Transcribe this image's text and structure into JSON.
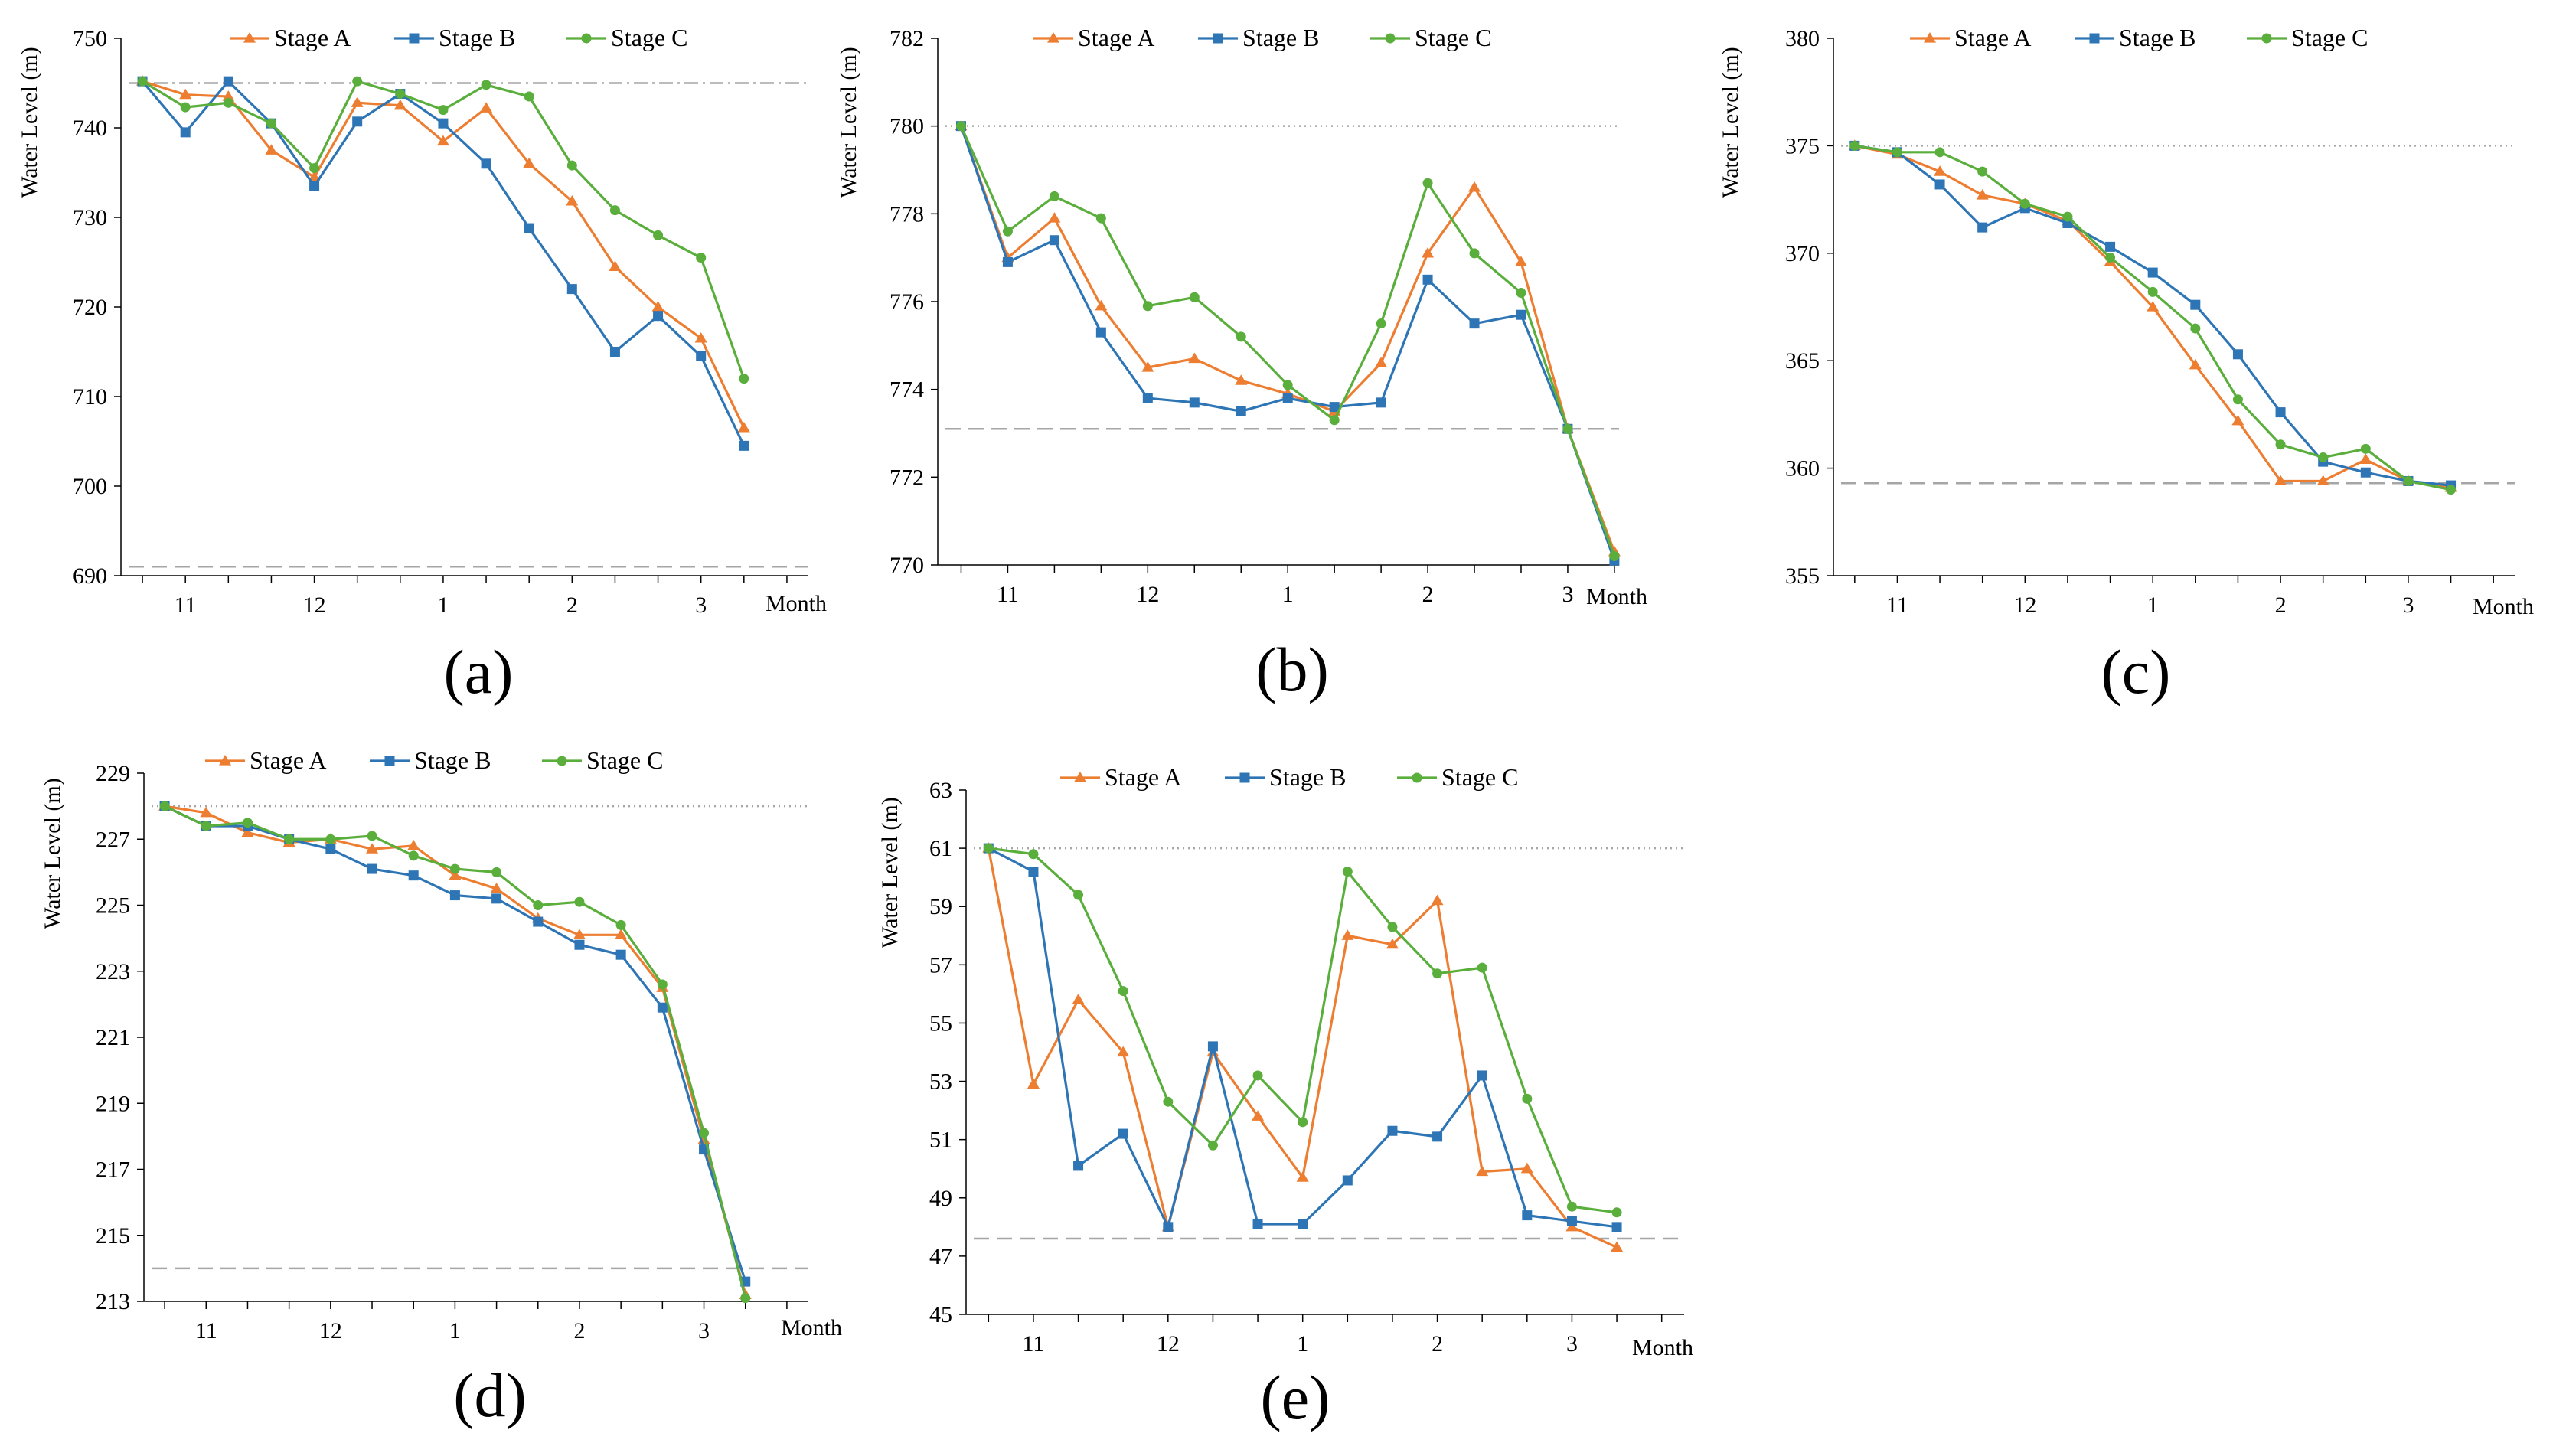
{
  "series_colors": {
    "Stage A": "#ED7D31",
    "Stage B": "#2E75B6",
    "Stage C": "#5AAE3C"
  },
  "ref_line_color": "#a6a6a6",
  "chart_data": [
    {
      "panel": "(a)",
      "type": "line",
      "ylabel": "Water Level (m)",
      "xlabel": "Month",
      "ylim": [
        690,
        750
      ],
      "yticks": [
        690,
        700,
        710,
        720,
        730,
        740,
        750
      ],
      "xticks": [
        {
          "label": "11",
          "x": 1
        },
        {
          "label": "12",
          "x": 4
        },
        {
          "label": "1",
          "x": 7
        },
        {
          "label": "2",
          "x": 10
        },
        {
          "label": "3",
          "x": 13
        }
      ],
      "xlim": [
        -0.5,
        15.5
      ],
      "ref_lines": [
        {
          "y": 745,
          "style": "dashdot"
        },
        {
          "y": 691,
          "style": "dash"
        }
      ],
      "legend": [
        "Stage A",
        "Stage B",
        "Stage C"
      ],
      "series": [
        {
          "name": "Stage A",
          "values": [
            745.2,
            743.7,
            743.5,
            737.5,
            734.5,
            742.8,
            742.5,
            738.5,
            742.2,
            736.0,
            731.8,
            724.5,
            720.0,
            716.5,
            706.5
          ]
        },
        {
          "name": "Stage B",
          "values": [
            745.2,
            739.5,
            745.2,
            740.5,
            733.5,
            740.7,
            743.8,
            740.5,
            736.0,
            728.8,
            722.0,
            715.0,
            719.0,
            714.5,
            704.5
          ]
        },
        {
          "name": "Stage C",
          "values": [
            745.2,
            742.3,
            742.8,
            740.5,
            735.5,
            745.2,
            743.8,
            742.0,
            744.8,
            743.5,
            735.8,
            730.8,
            728.0,
            725.5,
            712.0
          ]
        }
      ]
    },
    {
      "panel": "(b)",
      "type": "line",
      "ylabel": "Water Level (m)",
      "xlabel": "Month",
      "ylim": [
        770,
        782
      ],
      "yticks": [
        770,
        772,
        774,
        776,
        778,
        780,
        782
      ],
      "xticks": [
        {
          "label": "11",
          "x": 1
        },
        {
          "label": "12",
          "x": 4
        },
        {
          "label": "1",
          "x": 7
        },
        {
          "label": "2",
          "x": 10
        },
        {
          "label": "3",
          "x": 13
        }
      ],
      "xlim": [
        -0.5,
        14.1
      ],
      "xlabel_inline": true,
      "ref_lines": [
        {
          "y": 780,
          "style": "dot"
        },
        {
          "y": 773.1,
          "style": "dash"
        }
      ],
      "legend": [
        "Stage A",
        "Stage B",
        "Stage C"
      ],
      "series": [
        {
          "name": "Stage A",
          "values": [
            780.0,
            777.0,
            777.9,
            775.9,
            774.5,
            774.7,
            774.2,
            773.9,
            773.5,
            774.6,
            777.1,
            778.6,
            776.9,
            773.1,
            770.3
          ]
        },
        {
          "name": "Stage B",
          "values": [
            780.0,
            776.9,
            777.4,
            775.3,
            773.8,
            773.7,
            773.5,
            773.8,
            773.6,
            773.7,
            776.5,
            775.5,
            775.7,
            773.1,
            770.1
          ]
        },
        {
          "name": "Stage C",
          "values": [
            780.0,
            777.6,
            778.4,
            777.9,
            775.9,
            776.1,
            775.2,
            774.1,
            773.3,
            775.5,
            778.7,
            777.1,
            776.2,
            773.1,
            770.2
          ]
        }
      ]
    },
    {
      "panel": "(c)",
      "type": "line",
      "ylabel": "Water Level (m)",
      "xlabel": "Month",
      "ylim": [
        355,
        380
      ],
      "yticks": [
        355,
        360,
        365,
        370,
        375,
        380
      ],
      "xticks": [
        {
          "label": "11",
          "x": 1
        },
        {
          "label": "12",
          "x": 4
        },
        {
          "label": "1",
          "x": 7
        },
        {
          "label": "2",
          "x": 10
        },
        {
          "label": "3",
          "x": 13
        }
      ],
      "xlim": [
        -0.5,
        15.5
      ],
      "ref_lines": [
        {
          "y": 375,
          "style": "dot"
        },
        {
          "y": 359.3,
          "style": "dash"
        }
      ],
      "legend": [
        "Stage A",
        "Stage B",
        "Stage C"
      ],
      "series": [
        {
          "name": "Stage A",
          "values": [
            375.0,
            374.6,
            373.8,
            372.7,
            372.3,
            371.5,
            369.6,
            367.5,
            364.8,
            362.2,
            359.4,
            359.4,
            360.4,
            359.4,
            359.1
          ]
        },
        {
          "name": "Stage B",
          "values": [
            375.0,
            374.7,
            373.2,
            371.2,
            372.1,
            371.4,
            370.3,
            369.1,
            367.6,
            365.3,
            362.6,
            360.3,
            359.8,
            359.4,
            359.2
          ]
        },
        {
          "name": "Stage C",
          "values": [
            375.0,
            374.7,
            374.7,
            373.8,
            372.3,
            371.7,
            369.8,
            368.2,
            366.5,
            363.2,
            361.1,
            360.5,
            360.9,
            359.4,
            359.0
          ]
        }
      ]
    },
    {
      "panel": "(d)",
      "type": "line",
      "ylabel": "Water Level (m)",
      "xlabel": "Month",
      "ylim": [
        213,
        229
      ],
      "yticks": [
        213,
        215,
        217,
        219,
        221,
        223,
        225,
        227,
        229
      ],
      "xticks": [
        {
          "label": "11",
          "x": 1
        },
        {
          "label": "12",
          "x": 4
        },
        {
          "label": "1",
          "x": 7
        },
        {
          "label": "2",
          "x": 10
        },
        {
          "label": "3",
          "x": 13
        }
      ],
      "xlim": [
        -0.5,
        15.5
      ],
      "ref_lines": [
        {
          "y": 228,
          "style": "dot"
        },
        {
          "y": 214,
          "style": "dash"
        }
      ],
      "legend": [
        "Stage A",
        "Stage B",
        "Stage C"
      ],
      "series": [
        {
          "name": "Stage A",
          "values": [
            228.0,
            227.8,
            227.2,
            226.9,
            227.0,
            226.7,
            226.8,
            225.9,
            225.5,
            224.6,
            224.1,
            224.1,
            222.5,
            217.9,
            213.2
          ]
        },
        {
          "name": "Stage B",
          "values": [
            228.0,
            227.4,
            227.4,
            227.0,
            226.7,
            226.1,
            225.9,
            225.3,
            225.2,
            224.5,
            223.8,
            223.5,
            221.9,
            217.6,
            213.6
          ]
        },
        {
          "name": "Stage C",
          "values": [
            228.0,
            227.4,
            227.5,
            227.0,
            227.0,
            227.1,
            226.5,
            226.1,
            226.0,
            225.0,
            225.1,
            224.4,
            222.6,
            218.1,
            213.1
          ]
        }
      ]
    },
    {
      "panel": "(e)",
      "type": "line",
      "ylabel": "Water Level (m)",
      "xlabel": "Month",
      "ylim": [
        45,
        63
      ],
      "yticks": [
        45,
        47,
        49,
        51,
        53,
        55,
        57,
        59,
        61,
        63
      ],
      "xticks": [
        {
          "label": "11",
          "x": 1
        },
        {
          "label": "12",
          "x": 4
        },
        {
          "label": "1",
          "x": 7
        },
        {
          "label": "2",
          "x": 10
        },
        {
          "label": "3",
          "x": 13
        }
      ],
      "xlim": [
        -0.5,
        15.5
      ],
      "ref_lines": [
        {
          "y": 61,
          "style": "dot"
        },
        {
          "y": 47.6,
          "style": "dash"
        }
      ],
      "legend": [
        "Stage A",
        "Stage B",
        "Stage C"
      ],
      "series": [
        {
          "name": "Stage A",
          "values": [
            61.0,
            52.9,
            55.8,
            54.0,
            48.0,
            54.0,
            51.8,
            49.7,
            58.0,
            57.7,
            59.2,
            49.9,
            50.0,
            48.0,
            47.3
          ]
        },
        {
          "name": "Stage B",
          "values": [
            61.0,
            60.2,
            50.1,
            51.2,
            48.0,
            54.2,
            48.1,
            48.1,
            49.6,
            51.3,
            51.1,
            53.2,
            48.4,
            48.2,
            48.0
          ]
        },
        {
          "name": "Stage C",
          "values": [
            61.0,
            60.8,
            59.4,
            56.1,
            52.3,
            50.8,
            53.2,
            51.6,
            60.2,
            58.3,
            56.7,
            56.9,
            52.4,
            48.7,
            48.5
          ]
        }
      ]
    }
  ]
}
